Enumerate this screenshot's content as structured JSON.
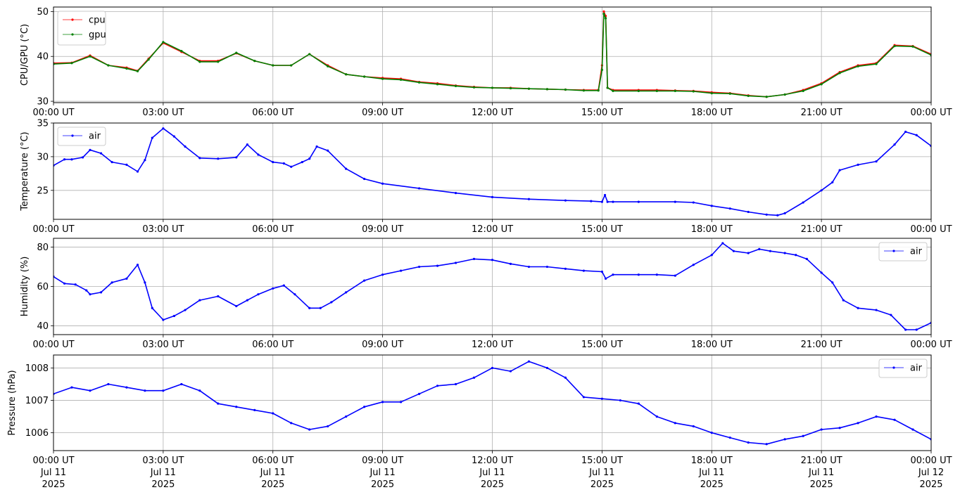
{
  "x_ticks": [
    "00:00 UT",
    "03:00 UT",
    "06:00 UT",
    "09:00 UT",
    "12:00 UT",
    "15:00 UT",
    "18:00 UT",
    "21:00 UT",
    "00:00 UT"
  ],
  "x_date_lines": [
    [
      "Jul 11",
      "2025"
    ],
    [
      "Jul 11",
      "2025"
    ],
    [
      "Jul 11",
      "2025"
    ],
    [
      "Jul 11",
      "2025"
    ],
    [
      "Jul 11",
      "2025"
    ],
    [
      "Jul 11",
      "2025"
    ],
    [
      "Jul 11",
      "2025"
    ],
    [
      "Jul 11",
      "2025"
    ],
    [
      "Jul 12",
      "2025"
    ]
  ],
  "colors": {
    "cpu": "#ff0000",
    "gpu": "#008000",
    "air": "#0000ff",
    "grid": "#b0b0b0"
  },
  "chart_data": [
    {
      "type": "line",
      "ylabel": "CPU/GPU (°C)",
      "ylim": [
        29.7,
        51
      ],
      "yticks": [
        30,
        40,
        50
      ],
      "x_range_hours": [
        0,
        24
      ],
      "grid": true,
      "legend": "top-left",
      "series": [
        {
          "name": "cpu",
          "color_key": "cpu",
          "x": [
            0,
            0.5,
            1,
            1.5,
            2,
            2.3,
            2.6,
            3,
            3.5,
            4,
            4.5,
            5,
            5.5,
            6,
            6.5,
            7,
            7.5,
            8,
            8.5,
            9,
            9.5,
            10,
            10.5,
            11,
            11.5,
            12,
            12.5,
            13,
            13.5,
            14,
            14.5,
            14.9,
            15.0,
            15.05,
            15.1,
            15.15,
            15.3,
            16,
            16.5,
            17,
            17.5,
            18,
            18.5,
            19,
            19.5,
            20,
            20.5,
            21,
            21.5,
            22,
            22.5,
            23,
            23.5,
            24
          ],
          "values": [
            38.5,
            38.6,
            40.2,
            38,
            37.5,
            36.8,
            39.5,
            43,
            41,
            39,
            39,
            40.7,
            39,
            38,
            38,
            40.5,
            38,
            36,
            35.5,
            35.2,
            35,
            34.3,
            34,
            33.5,
            33.2,
            33,
            33,
            32.8,
            32.7,
            32.6,
            32.5,
            32.5,
            38,
            50,
            49,
            33,
            32.5,
            32.5,
            32.5,
            32.4,
            32.3,
            32,
            31.8,
            31.3,
            31,
            31.5,
            32.5,
            34,
            36.5,
            38,
            38.5,
            42.5,
            42.3,
            40.5
          ]
        },
        {
          "name": "gpu",
          "color_key": "gpu",
          "x": [
            0,
            0.5,
            1,
            1.5,
            2,
            2.3,
            2.6,
            3,
            3.5,
            4,
            4.5,
            5,
            5.5,
            6,
            6.5,
            7,
            7.5,
            8,
            8.5,
            9,
            9.5,
            10,
            10.5,
            11,
            11.5,
            12,
            12.5,
            13,
            13.5,
            14,
            14.5,
            14.9,
            15.0,
            15.05,
            15.1,
            15.15,
            15.3,
            16,
            16.5,
            17,
            17.5,
            18,
            18.5,
            19,
            19.5,
            20,
            20.5,
            21,
            21.5,
            22,
            22.5,
            23,
            23.5,
            24
          ],
          "values": [
            38.3,
            38.5,
            40,
            38,
            37.3,
            36.7,
            39.3,
            43.2,
            41.2,
            38.8,
            38.8,
            40.8,
            39,
            38,
            38,
            40.5,
            37.8,
            36,
            35.5,
            35,
            34.8,
            34.2,
            33.8,
            33.4,
            33.1,
            33,
            32.9,
            32.8,
            32.7,
            32.6,
            32.4,
            32.4,
            37,
            49.5,
            48.5,
            33,
            32.3,
            32.3,
            32.3,
            32.3,
            32.2,
            31.8,
            31.7,
            31.2,
            31,
            31.5,
            32.3,
            33.8,
            36.3,
            37.8,
            38.3,
            42.3,
            42.2,
            40.3
          ]
        }
      ]
    },
    {
      "type": "line",
      "ylabel": "Temperature (°C)",
      "ylim": [
        20.7,
        35
      ],
      "yticks": [
        25,
        30,
        35
      ],
      "x_range_hours": [
        0,
        24
      ],
      "grid": true,
      "legend": "top-left",
      "series": [
        {
          "name": "air",
          "color_key": "air",
          "x": [
            0,
            0.3,
            0.5,
            0.8,
            1,
            1.3,
            1.6,
            2,
            2.3,
            2.5,
            2.7,
            3,
            3.3,
            3.6,
            4,
            4.5,
            5,
            5.3,
            5.6,
            6,
            6.3,
            6.5,
            6.8,
            7,
            7.2,
            7.5,
            8,
            8.5,
            9,
            10,
            11,
            12,
            13,
            14,
            14.7,
            15.0,
            15.08,
            15.15,
            15.3,
            16,
            17,
            17.5,
            18,
            18.5,
            19,
            19.5,
            19.8,
            20,
            20.5,
            21,
            21.3,
            21.5,
            22,
            22.5,
            23,
            23.3,
            23.6,
            24
          ],
          "values": [
            28.7,
            29.6,
            29.6,
            29.9,
            31,
            30.5,
            29.2,
            28.8,
            27.8,
            29.5,
            32.8,
            34.2,
            33,
            31.5,
            29.8,
            29.7,
            29.9,
            31.8,
            30.3,
            29.2,
            29,
            28.5,
            29.2,
            29.7,
            31.5,
            30.9,
            28.2,
            26.7,
            26,
            25.3,
            24.6,
            24,
            23.7,
            23.5,
            23.4,
            23.3,
            24.3,
            23.3,
            23.3,
            23.3,
            23.3,
            23.2,
            22.7,
            22.3,
            21.8,
            21.4,
            21.3,
            21.6,
            23.2,
            25,
            26.2,
            28,
            28.8,
            29.3,
            31.8,
            33.7,
            33.2,
            31.6
          ]
        }
      ]
    },
    {
      "type": "line",
      "ylabel": "Humidity (%)",
      "ylim": [
        35.5,
        84.5
      ],
      "yticks": [
        40,
        60,
        80
      ],
      "x_range_hours": [
        0,
        24
      ],
      "grid": true,
      "legend": "top-right",
      "series": [
        {
          "name": "air",
          "color_key": "air",
          "x": [
            0,
            0.3,
            0.6,
            0.9,
            1,
            1.3,
            1.6,
            2,
            2.3,
            2.5,
            2.7,
            3,
            3.3,
            3.6,
            4,
            4.5,
            5,
            5.3,
            5.6,
            6,
            6.3,
            6.6,
            7,
            7.3,
            7.6,
            8,
            8.5,
            9,
            9.5,
            10,
            10.5,
            11,
            11.5,
            12,
            12.5,
            13,
            13.5,
            14,
            14.5,
            15.0,
            15.1,
            15.3,
            16,
            16.5,
            17,
            17.5,
            18,
            18.3,
            18.6,
            19,
            19.3,
            19.6,
            20,
            20.3,
            20.6,
            21,
            21.3,
            21.6,
            22,
            22.5,
            22.9,
            23.3,
            23.6,
            24
          ],
          "values": [
            65,
            61.5,
            61,
            58,
            56,
            57,
            62,
            64,
            71,
            62,
            49,
            43,
            45,
            48,
            53,
            55,
            50,
            53,
            56,
            59,
            60.5,
            56,
            49,
            49,
            52,
            57,
            63,
            66,
            68,
            70,
            70.5,
            72,
            74,
            73.5,
            71.5,
            70,
            70,
            69,
            68,
            67.5,
            64,
            66,
            66,
            66,
            65.5,
            71,
            76,
            82,
            78,
            77,
            79,
            78,
            77,
            76,
            74,
            67,
            62,
            53,
            49,
            48,
            45.5,
            38,
            38,
            41.5
          ]
        }
      ]
    },
    {
      "type": "line",
      "ylabel": "Pressure (hPa)",
      "ylim": [
        1005.45,
        1008.4
      ],
      "yticks": [
        1006,
        1007,
        1008
      ],
      "x_range_hours": [
        0,
        24
      ],
      "grid": true,
      "legend": "top-right",
      "series": [
        {
          "name": "air",
          "color_key": "air",
          "x": [
            0,
            0.5,
            1,
            1.5,
            2,
            2.5,
            3,
            3.5,
            4,
            4.5,
            5,
            5.5,
            6,
            6.5,
            7,
            7.5,
            8,
            8.5,
            9,
            9.5,
            10,
            10.5,
            11,
            11.5,
            12,
            12.5,
            13,
            13.5,
            14,
            14.5,
            15,
            15.5,
            16,
            16.5,
            17,
            17.5,
            18,
            18.5,
            19,
            19.5,
            20,
            20.5,
            21,
            21.5,
            22,
            22.5,
            23,
            23.5,
            24
          ],
          "values": [
            1007.2,
            1007.4,
            1007.3,
            1007.5,
            1007.4,
            1007.3,
            1007.3,
            1007.5,
            1007.3,
            1006.9,
            1006.8,
            1006.7,
            1006.6,
            1006.3,
            1006.1,
            1006.2,
            1006.5,
            1006.8,
            1006.95,
            1006.95,
            1007.2,
            1007.45,
            1007.5,
            1007.7,
            1008.0,
            1007.9,
            1008.2,
            1008.0,
            1007.7,
            1007.1,
            1007.05,
            1007.0,
            1006.9,
            1006.5,
            1006.3,
            1006.2,
            1006.0,
            1005.85,
            1005.7,
            1005.65,
            1005.8,
            1005.9,
            1006.1,
            1006.15,
            1006.3,
            1006.5,
            1006.4,
            1006.1,
            1005.8
          ]
        }
      ]
    }
  ]
}
